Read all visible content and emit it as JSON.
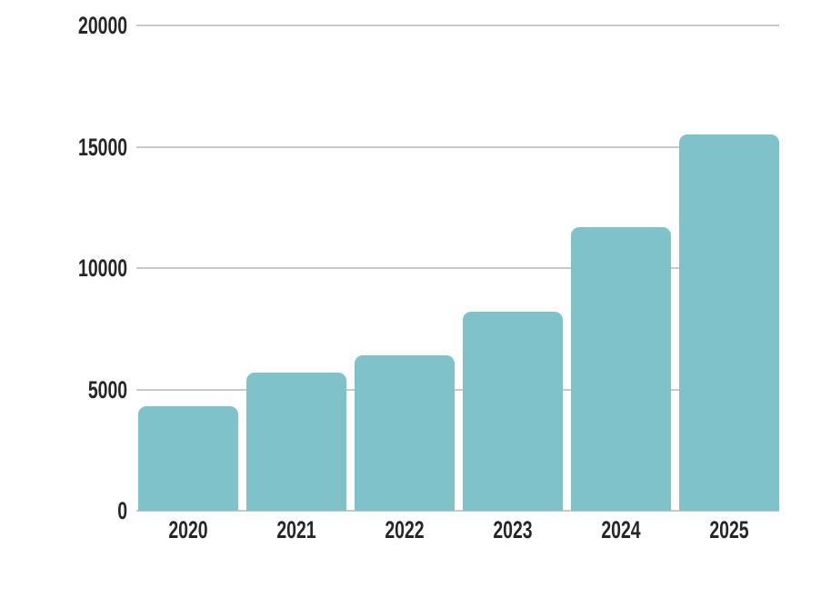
{
  "chart_data": {
    "type": "bar",
    "title": "",
    "xlabel": "",
    "ylabel": "",
    "categories": [
      "2020",
      "2021",
      "2022",
      "2023",
      "2024",
      "2025"
    ],
    "values": [
      4300,
      5700,
      6400,
      8200,
      11700,
      15500
    ],
    "ylim": [
      0,
      20000
    ],
    "y_ticks": [
      0,
      5000,
      10000,
      15000,
      20000
    ],
    "y_tick_labels": [
      "0",
      "5000",
      "10000",
      "15000",
      "20000"
    ],
    "grid": true,
    "legend": "none",
    "colors": {
      "bar": "#7FC2C9",
      "gridline": "#C9C9C9",
      "tick_text": "#262626",
      "background": "#FFFFFF"
    }
  }
}
